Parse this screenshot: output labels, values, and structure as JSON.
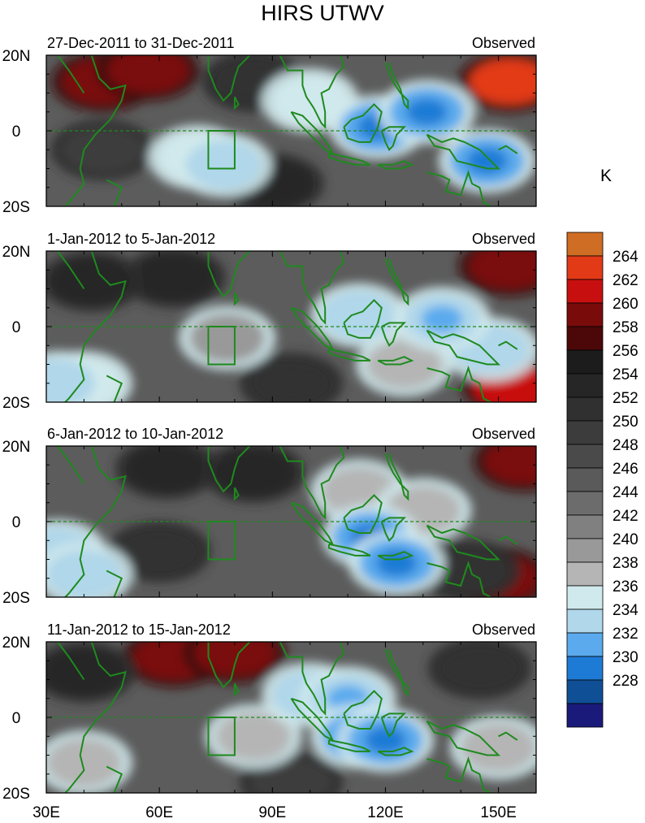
{
  "title": "HIRS UTWV",
  "unit": "K",
  "chart_data": {
    "type": "heatmap",
    "title": "HIRS UTWV",
    "x_axis": {
      "range": [
        30,
        160
      ],
      "ticks": [
        30,
        60,
        90,
        120,
        150
      ],
      "tick_labels": [
        "30E",
        "60E",
        "90E",
        "120E",
        "150E"
      ]
    },
    "y_axis": {
      "range": [
        -20,
        20
      ],
      "ticks": [
        -20,
        0,
        20
      ],
      "tick_labels": [
        "20S",
        "0",
        "20N"
      ]
    },
    "colorbar": {
      "unit": "K",
      "levels": [
        264,
        262,
        260,
        258,
        256,
        254,
        252,
        250,
        248,
        246,
        244,
        242,
        240,
        238,
        236,
        234,
        232,
        230,
        228
      ],
      "colors": [
        "#cf6d24",
        "#e23a17",
        "#c80f0f",
        "#7a0b0b",
        "#4c0808",
        "#1c1c1c",
        "#262626",
        "#303030",
        "#3c3c3c",
        "#4a4a4a",
        "#5a5a5a",
        "#6c6c6c",
        "#808080",
        "#999999",
        "#b5b5b5",
        "#d0e9ec",
        "#b0d7ea",
        "#5aaaed",
        "#1e7bd5",
        "#0f4f96",
        "#1a1a7a"
      ],
      "legend": "right"
    },
    "panels": [
      {
        "label": "27-Dec-2011 to 31-Dec-2011",
        "right_label": "Observed",
        "features": [
          {
            "lon": 45,
            "lat": 13,
            "value": 258
          },
          {
            "lon": 57,
            "lat": 16,
            "value": 258
          },
          {
            "lon": 153,
            "lat": 13,
            "value": 262
          },
          {
            "lon": 70,
            "lat": -7,
            "value": 235
          },
          {
            "lon": 77,
            "lat": -9,
            "value": 233
          },
          {
            "lon": 118,
            "lat": 1,
            "value": 231
          },
          {
            "lon": 131,
            "lat": 5,
            "value": 231
          },
          {
            "lon": 147,
            "lat": -8,
            "value": 231
          },
          {
            "lon": 100,
            "lat": 8,
            "value": 235
          },
          {
            "lon": 45,
            "lat": -5,
            "value": 248
          },
          {
            "lon": 85,
            "lat": 13,
            "value": 250
          },
          {
            "lon": 90,
            "lat": -14,
            "value": 252
          }
        ]
      },
      {
        "label": "1-Jan-2012 to 5-Jan-2012",
        "right_label": "Observed",
        "features": [
          {
            "lon": 153,
            "lat": 16,
            "value": 259
          },
          {
            "lon": 154,
            "lat": -16,
            "value": 261
          },
          {
            "lon": 64,
            "lat": 13,
            "value": 253
          },
          {
            "lon": 42,
            "lat": 12,
            "value": 252
          },
          {
            "lon": 33,
            "lat": -15,
            "value": 233
          },
          {
            "lon": 40,
            "lat": -15,
            "value": 235
          },
          {
            "lon": 113,
            "lat": 3,
            "value": 233
          },
          {
            "lon": 135,
            "lat": 2,
            "value": 232
          },
          {
            "lon": 148,
            "lat": -6,
            "value": 233
          },
          {
            "lon": 78,
            "lat": -3,
            "value": 238
          },
          {
            "lon": 125,
            "lat": -10,
            "value": 236
          },
          {
            "lon": 95,
            "lat": -15,
            "value": 250
          }
        ]
      },
      {
        "label": "6-Jan-2012 to 10-Jan-2012",
        "right_label": "Observed",
        "features": [
          {
            "lon": 157,
            "lat": 16,
            "value": 259
          },
          {
            "lon": 150,
            "lat": -15,
            "value": 259
          },
          {
            "lon": 62,
            "lat": 14,
            "value": 253
          },
          {
            "lon": 85,
            "lat": 13,
            "value": 252
          },
          {
            "lon": 33,
            "lat": -8,
            "value": 233
          },
          {
            "lon": 40,
            "lat": -14,
            "value": 233
          },
          {
            "lon": 116,
            "lat": -4,
            "value": 231
          },
          {
            "lon": 123,
            "lat": -11,
            "value": 230
          },
          {
            "lon": 113,
            "lat": 8,
            "value": 236
          },
          {
            "lon": 130,
            "lat": 3,
            "value": 236
          },
          {
            "lon": 60,
            "lat": -8,
            "value": 250
          },
          {
            "lon": 142,
            "lat": -13,
            "value": 250
          }
        ]
      },
      {
        "label": "11-Jan-2012 to 15-Jan-2012",
        "right_label": "Observed",
        "features": [
          {
            "lon": 64,
            "lat": 16,
            "value": 258
          },
          {
            "lon": 80,
            "lat": 17,
            "value": 258
          },
          {
            "lon": 40,
            "lat": 12,
            "value": 253
          },
          {
            "lon": 145,
            "lat": 13,
            "value": 250
          },
          {
            "lon": 113,
            "lat": -5,
            "value": 231
          },
          {
            "lon": 120,
            "lat": -6,
            "value": 230
          },
          {
            "lon": 110,
            "lat": 5,
            "value": 232
          },
          {
            "lon": 100,
            "lat": 6,
            "value": 233
          },
          {
            "lon": 85,
            "lat": -5,
            "value": 236
          },
          {
            "lon": 40,
            "lat": -12,
            "value": 236
          },
          {
            "lon": 150,
            "lat": -8,
            "value": 236
          },
          {
            "lon": 95,
            "lat": -17,
            "value": 248
          }
        ]
      }
    ]
  }
}
